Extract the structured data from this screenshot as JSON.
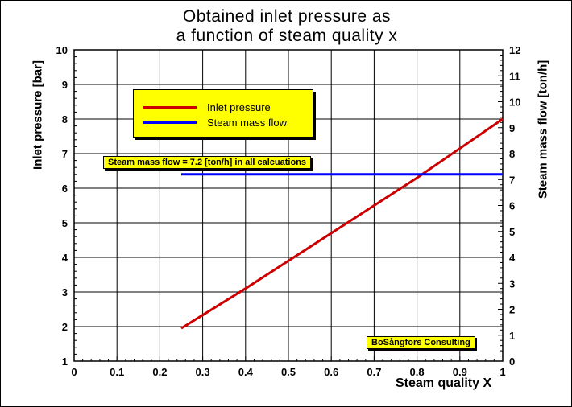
{
  "chart_data": {
    "type": "line",
    "title": [
      "Obtained inlet pressure as",
      "a  function of steam quality x"
    ],
    "xlabel": "Steam quality X",
    "ylabel": "Inlet pressure [bar]",
    "y2label": "Steam mass flow [ton/h]",
    "xlim": [
      0,
      1
    ],
    "ylim": [
      1,
      10
    ],
    "y2lim": [
      0,
      12
    ],
    "xticks": [
      "0",
      "0.1",
      "0.2",
      "0.3",
      "0.4",
      "0.5",
      "0.6",
      "0.7",
      "0.8",
      "0.9",
      "1"
    ],
    "yticks": [
      "1",
      "2",
      "3",
      "4",
      "5",
      "6",
      "7",
      "8",
      "9",
      "10"
    ],
    "y2ticks": [
      "0",
      "1",
      "2",
      "3",
      "4",
      "5",
      "6",
      "7",
      "8",
      "9",
      "10",
      "11",
      "12"
    ],
    "grid": true,
    "legend_position": "top-left",
    "series": [
      {
        "name": "Inlet pressure",
        "axis": "left",
        "color": "#cc0000",
        "x": [
          0.25,
          0.4,
          0.5,
          0.6,
          0.7,
          0.8,
          0.9,
          1.0
        ],
        "y": [
          1.95,
          3.1,
          3.9,
          4.7,
          5.5,
          6.3,
          7.15,
          8.0
        ]
      },
      {
        "name": "Steam mass flow",
        "axis": "right",
        "color": "#0000ff",
        "x": [
          0.25,
          0.5,
          1.0
        ],
        "y": [
          7.2,
          7.2,
          7.2
        ]
      }
    ],
    "annotations": [
      "Steam mass flow = 7.2 [ton/h] in all calcuations",
      "BoSångfors Consulting"
    ]
  }
}
